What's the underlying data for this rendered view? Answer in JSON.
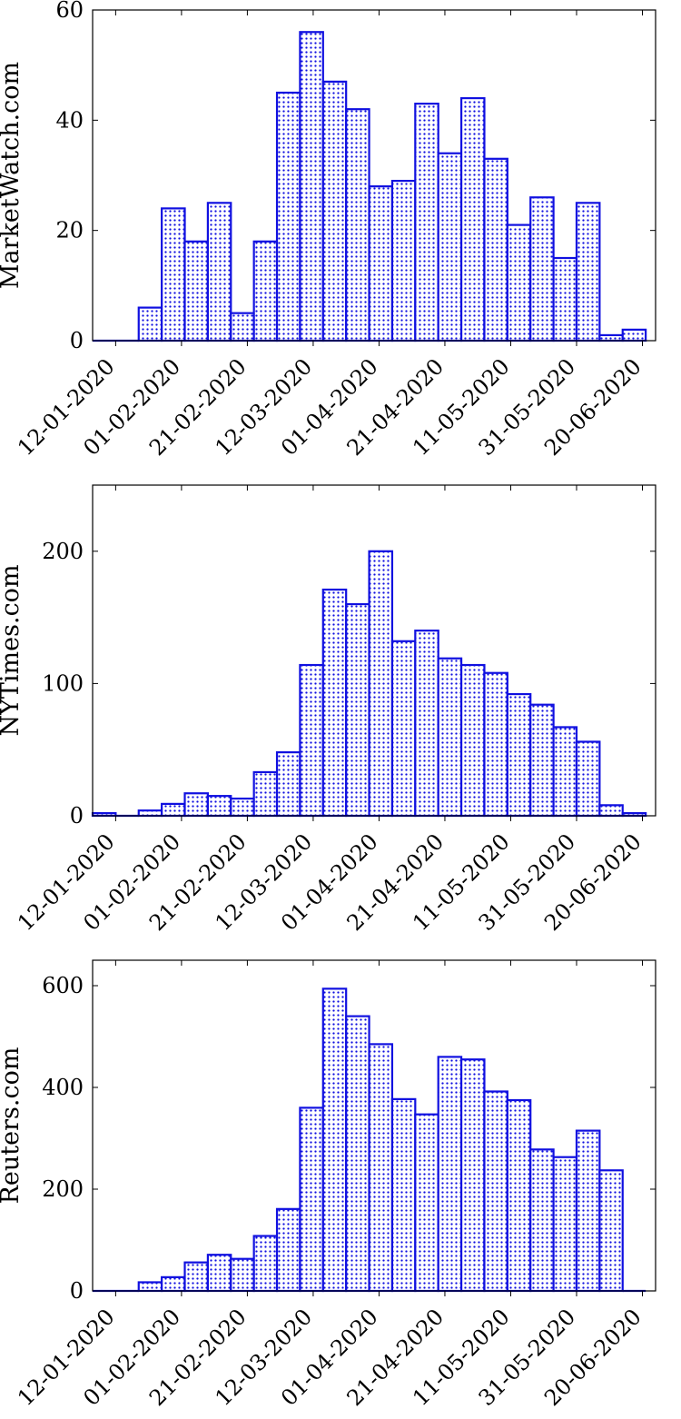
{
  "colors": {
    "bar_stroke": "#1010e0",
    "dot_fill": "#1010e0",
    "axis": "#000000"
  },
  "chart_data": [
    {
      "type": "bar",
      "ylabel": "MarketWatch.com",
      "ylim": [
        0,
        60
      ],
      "yticks": [
        0,
        20,
        40,
        60
      ],
      "xlim": [
        "05-01-2020",
        "24-06-2020"
      ],
      "xticks": [
        "12-01-2020",
        "01-02-2020",
        "21-02-2020",
        "12-03-2020",
        "01-04-2020",
        "21-04-2020",
        "11-05-2020",
        "31-05-2020",
        "20-06-2020"
      ],
      "bin_days": 7,
      "bin_starts": [
        "05-01-2020",
        "12-01-2020",
        "19-01-2020",
        "26-01-2020",
        "02-02-2020",
        "09-02-2020",
        "16-02-2020",
        "23-02-2020",
        "01-03-2020",
        "08-03-2020",
        "15-03-2020",
        "22-03-2020",
        "29-03-2020",
        "05-04-2020",
        "12-04-2020",
        "19-04-2020",
        "26-04-2020",
        "03-05-2020",
        "10-05-2020",
        "17-05-2020",
        "24-05-2020",
        "31-05-2020",
        "07-06-2020",
        "14-06-2020"
      ],
      "values": [
        0,
        0,
        6,
        24,
        18,
        25,
        5,
        18,
        45,
        56,
        47,
        42,
        28,
        29,
        43,
        34,
        44,
        33,
        21,
        26,
        15,
        25,
        1,
        2
      ],
      "grid": false,
      "legend": "none"
    },
    {
      "type": "bar",
      "ylabel": "NYTimes.com",
      "ylim": [
        0,
        250
      ],
      "yticks": [
        0,
        100,
        200
      ],
      "xlim": [
        "05-01-2020",
        "24-06-2020"
      ],
      "xticks": [
        "12-01-2020",
        "01-02-2020",
        "21-02-2020",
        "12-03-2020",
        "01-04-2020",
        "21-04-2020",
        "11-05-2020",
        "31-05-2020",
        "20-06-2020"
      ],
      "bin_days": 7,
      "bin_starts": [
        "05-01-2020",
        "12-01-2020",
        "19-01-2020",
        "26-01-2020",
        "02-02-2020",
        "09-02-2020",
        "16-02-2020",
        "23-02-2020",
        "01-03-2020",
        "08-03-2020",
        "15-03-2020",
        "22-03-2020",
        "29-03-2020",
        "05-04-2020",
        "12-04-2020",
        "19-04-2020",
        "26-04-2020",
        "03-05-2020",
        "10-05-2020",
        "17-05-2020",
        "24-05-2020",
        "31-05-2020",
        "07-06-2020",
        "14-06-2020"
      ],
      "values": [
        2,
        0,
        4,
        9,
        17,
        15,
        13,
        33,
        48,
        114,
        171,
        160,
        200,
        132,
        140,
        119,
        114,
        108,
        92,
        84,
        67,
        56,
        8,
        2
      ],
      "grid": false,
      "legend": "none"
    },
    {
      "type": "bar",
      "ylabel": "Reuters.com",
      "ylim": [
        0,
        650
      ],
      "yticks": [
        0,
        200,
        400,
        600
      ],
      "xlim": [
        "05-01-2020",
        "24-06-2020"
      ],
      "xticks": [
        "12-01-2020",
        "01-02-2020",
        "21-02-2020",
        "12-03-2020",
        "01-04-2020",
        "21-04-2020",
        "11-05-2020",
        "31-05-2020",
        "20-06-2020"
      ],
      "bin_days": 7,
      "bin_starts": [
        "05-01-2020",
        "12-01-2020",
        "19-01-2020",
        "26-01-2020",
        "02-02-2020",
        "09-02-2020",
        "16-02-2020",
        "23-02-2020",
        "01-03-2020",
        "08-03-2020",
        "15-03-2020",
        "22-03-2020",
        "29-03-2020",
        "05-04-2020",
        "12-04-2020",
        "19-04-2020",
        "26-04-2020",
        "03-05-2020",
        "10-05-2020",
        "17-05-2020",
        "24-05-2020",
        "31-05-2020",
        "07-06-2020",
        "14-06-2020"
      ],
      "values": [
        0,
        0,
        17,
        27,
        56,
        71,
        63,
        108,
        161,
        360,
        594,
        540,
        485,
        377,
        347,
        460,
        455,
        392,
        375,
        278,
        263,
        315,
        237,
        0
      ],
      "grid": false,
      "legend": "none"
    }
  ]
}
